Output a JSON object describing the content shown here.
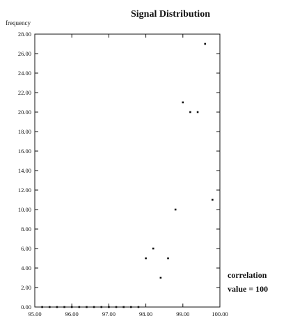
{
  "chart_data": {
    "type": "scatter",
    "title": "Signal Distribution",
    "ylabel": "frequency",
    "xlabel": "",
    "xlim": [
      95.0,
      100.0
    ],
    "ylim": [
      0,
      28
    ],
    "x_ticks": [
      "95.00",
      "96.00",
      "97.00",
      "98.00",
      "99.00",
      "100.00"
    ],
    "y_ticks": [
      "0.00",
      "2.00",
      "4.00",
      "6.00",
      "8.00",
      "10.00",
      "12.00",
      "14.00",
      "16.00",
      "18.00",
      "20.00",
      "22.00",
      "24.00",
      "26.00",
      "28.00"
    ],
    "points": [
      {
        "x": 95.2,
        "y": 0
      },
      {
        "x": 95.4,
        "y": 0
      },
      {
        "x": 95.6,
        "y": 0
      },
      {
        "x": 95.8,
        "y": 0
      },
      {
        "x": 96.0,
        "y": 0
      },
      {
        "x": 96.2,
        "y": 0
      },
      {
        "x": 96.4,
        "y": 0
      },
      {
        "x": 96.6,
        "y": 0
      },
      {
        "x": 96.8,
        "y": 0
      },
      {
        "x": 97.0,
        "y": 0
      },
      {
        "x": 97.2,
        "y": 0
      },
      {
        "x": 97.4,
        "y": 0
      },
      {
        "x": 97.6,
        "y": 0
      },
      {
        "x": 97.8,
        "y": 0
      },
      {
        "x": 98.0,
        "y": 5
      },
      {
        "x": 98.2,
        "y": 6
      },
      {
        "x": 98.4,
        "y": 3
      },
      {
        "x": 98.6,
        "y": 5
      },
      {
        "x": 98.8,
        "y": 10
      },
      {
        "x": 99.0,
        "y": 21
      },
      {
        "x": 99.2,
        "y": 20
      },
      {
        "x": 99.4,
        "y": 20
      },
      {
        "x": 99.6,
        "y": 27
      },
      {
        "x": 99.8,
        "y": 11
      }
    ],
    "annotation": {
      "line1": "correlation",
      "line2": "value  =  100"
    },
    "grid": false,
    "color": "#111111"
  }
}
